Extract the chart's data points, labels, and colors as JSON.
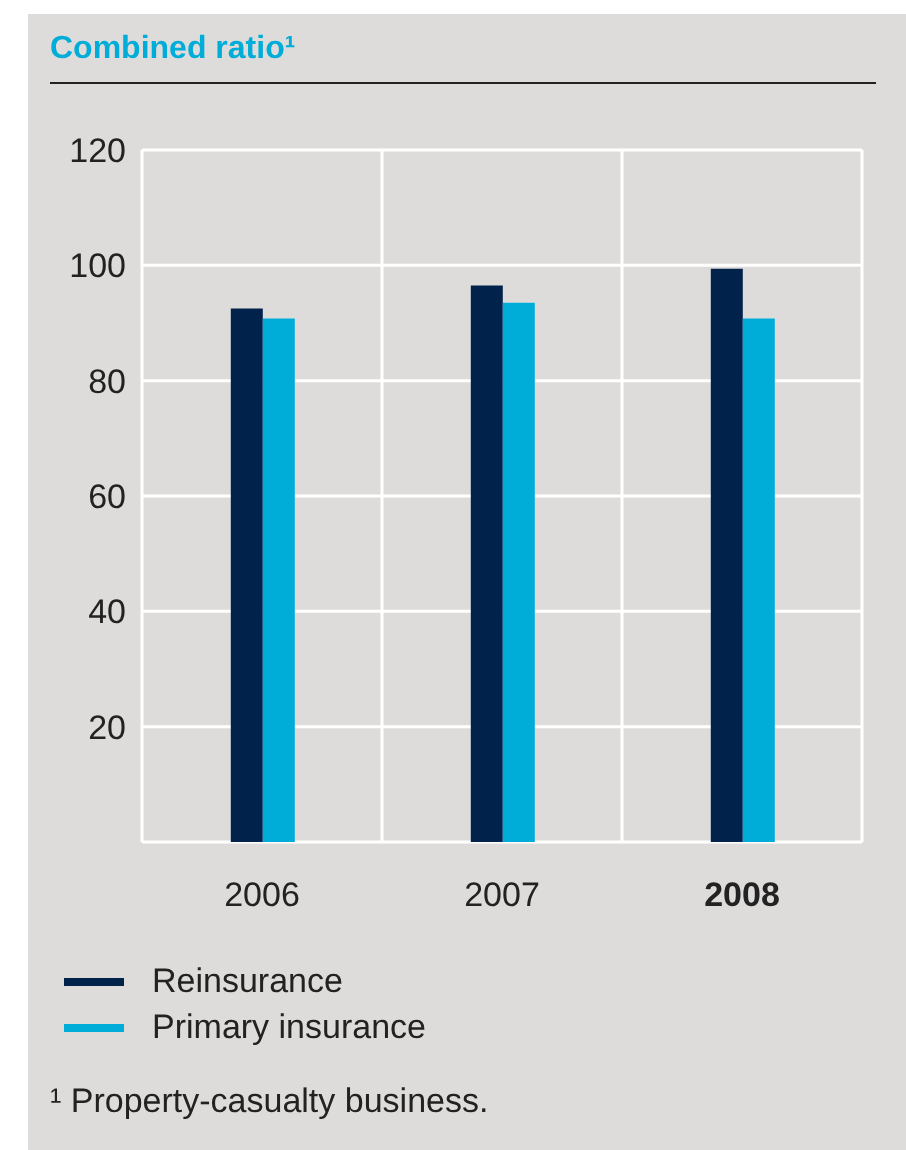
{
  "chart_data": {
    "type": "bar",
    "title": "Combined ratio¹",
    "categories": [
      "2006",
      "2007",
      "2008"
    ],
    "series": [
      {
        "name": "Reinsurance",
        "color": "#00224b",
        "values": [
          92.5,
          96.5,
          99.4
        ]
      },
      {
        "name": "Primary insurance",
        "color": "#00acd8",
        "values": [
          90.8,
          93.5,
          90.8
        ]
      }
    ],
    "ylim": [
      0,
      120
    ],
    "yticks": [
      {
        "value": 0,
        "label": null
      },
      20,
      40,
      60,
      80,
      100,
      120
    ],
    "grid": true,
    "legend": "bottom",
    "annotations": [
      "¹ Property-casualty business."
    ]
  }
}
